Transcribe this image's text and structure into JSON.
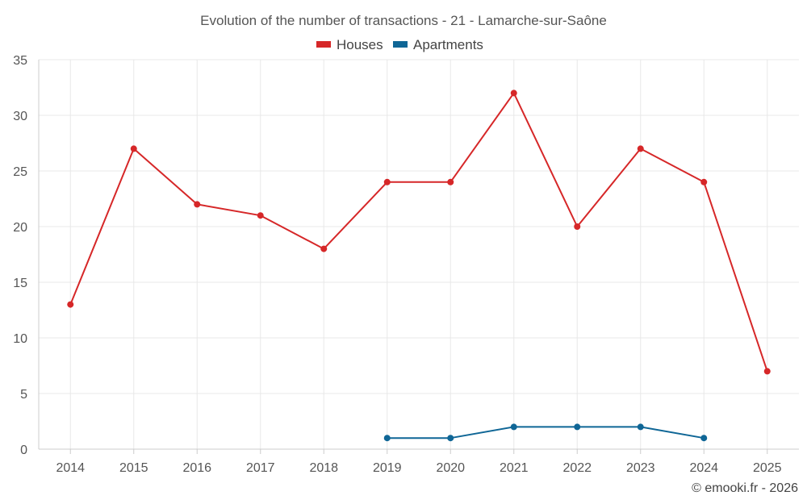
{
  "chart_data": {
    "type": "line",
    "title": "Evolution of the number of transactions - 21 - Lamarche-sur-Saône",
    "categories": [
      "2014",
      "2015",
      "2016",
      "2017",
      "2018",
      "2019",
      "2020",
      "2021",
      "2022",
      "2023",
      "2024",
      "2025"
    ],
    "series": [
      {
        "name": "Houses",
        "color": "#d62728",
        "values": [
          13,
          27,
          22,
          21,
          18,
          24,
          24,
          32,
          20,
          27,
          24,
          7
        ]
      },
      {
        "name": "Apartments",
        "color": "#0f6696",
        "values": [
          null,
          null,
          null,
          null,
          null,
          1,
          1,
          2,
          2,
          2,
          1,
          null
        ]
      }
    ],
    "ylim": [
      0,
      35
    ],
    "yticks": [
      "0",
      "5",
      "10",
      "15",
      "20",
      "25",
      "30",
      "35"
    ],
    "xlabel": "",
    "ylabel": "",
    "grid": true,
    "legend": "top-center"
  },
  "credit": "© emooki.fr - 2026"
}
